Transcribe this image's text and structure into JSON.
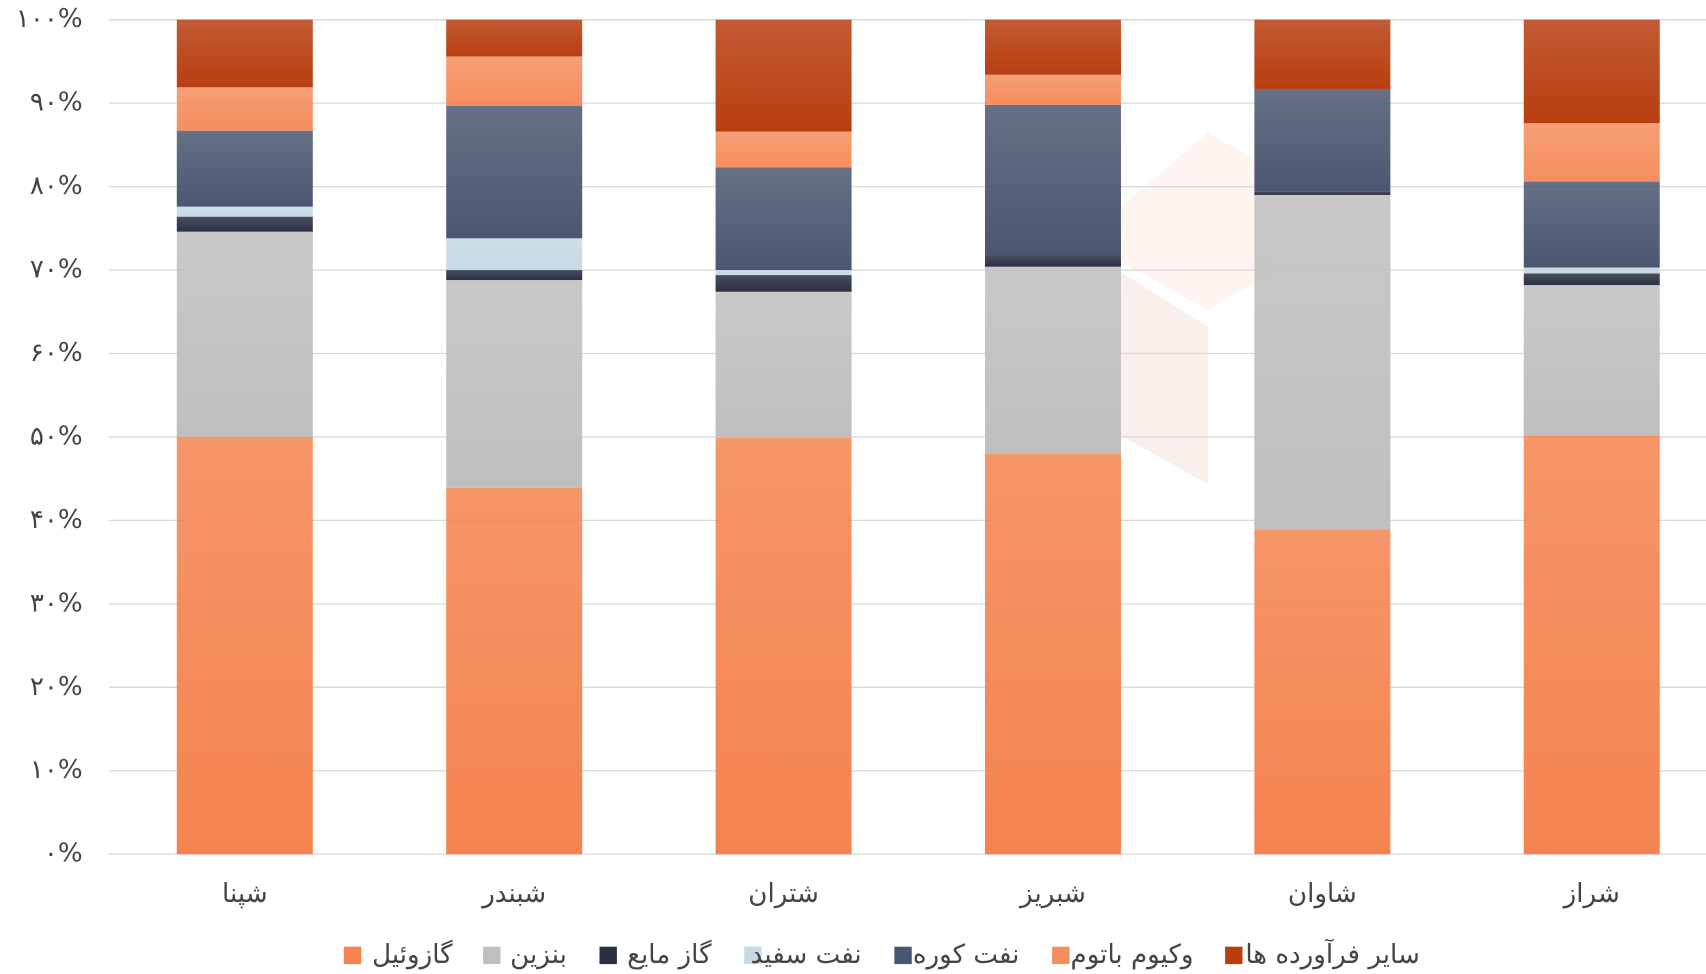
{
  "chart_data": {
    "type": "stacked_bar",
    "categories": [
      "شپنا",
      "شبندر",
      "شتران",
      "شبریز",
      "شاوان",
      "شراز"
    ],
    "series": [
      {
        "name": "گازوئیل",
        "color": "#f4834f",
        "values": [
          50,
          43.9,
          49.9,
          48,
          38.9,
          50.2
        ]
      },
      {
        "name": "بنزین",
        "color": "#bfbfbf",
        "values": [
          24.6,
          24.9,
          17.5,
          22.4,
          40.1,
          18
        ]
      },
      {
        "name": "گاز مایع",
        "color": "#2a3042",
        "values": [
          1.8,
          1.2,
          2,
          1.4,
          0.4,
          1.4
        ]
      },
      {
        "name": "نفت سفید",
        "color": "#c7d9e6",
        "values": [
          1.2,
          3.8,
          0.6,
          0,
          0,
          0.7
        ]
      },
      {
        "name": "نفت کوره",
        "color": "#4b5771",
        "values": [
          9.1,
          15.9,
          12.3,
          18,
          12.3,
          10.3
        ]
      },
      {
        "name": "وکیوم باتوم",
        "color": "#f58e5e",
        "values": [
          5.2,
          5.9,
          4.3,
          3.6,
          0,
          7
        ]
      },
      {
        "name": "سایر فرآورده ها",
        "color": "#b83e10",
        "values": [
          8.1,
          4.4,
          13.4,
          6.6,
          8.3,
          12.4
        ]
      }
    ],
    "ylim": [
      0,
      100
    ],
    "yticks": [
      {
        "value": 0,
        "label": "۰%"
      },
      {
        "value": 10,
        "label": "۱۰%"
      },
      {
        "value": 20,
        "label": "۲۰%"
      },
      {
        "value": 30,
        "label": "۳۰%"
      },
      {
        "value": 40,
        "label": "۴۰%"
      },
      {
        "value": 50,
        "label": "۵۰%"
      },
      {
        "value": 60,
        "label": "۶۰%"
      },
      {
        "value": 70,
        "label": "۷۰%"
      },
      {
        "value": 80,
        "label": "۸۰%"
      },
      {
        "value": 90,
        "label": "۹۰%"
      },
      {
        "value": 100,
        "label": "۱۰۰%"
      }
    ],
    "grid": true,
    "legend": "bottom"
  }
}
